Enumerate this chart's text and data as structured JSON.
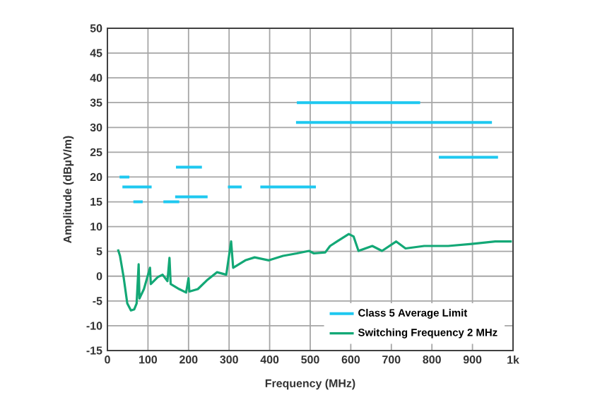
{
  "chart_data": {
    "type": "line",
    "xlabel": "Frequency (MHz)",
    "ylabel": "Amplitude (dBµV/m)",
    "xlim": [
      0,
      1000
    ],
    "ylim": [
      -15,
      50
    ],
    "xticks": [
      0,
      100,
      200,
      300,
      400,
      500,
      600,
      700,
      800,
      900,
      {
        "value": 1000,
        "label": "1k"
      }
    ],
    "yticks": [
      -15,
      -10,
      -5,
      0,
      5,
      10,
      15,
      20,
      25,
      30,
      35,
      40,
      45,
      50
    ],
    "grid": true,
    "legend": "bottom right",
    "series": [
      {
        "name": "Class 5 Average Limit",
        "color": "#1ec8f0",
        "x": [
          30,
          54,
          null,
          37,
          109,
          null,
          64,
          87,
          null,
          138,
          177,
          null,
          169,
          233,
          null,
          167,
          247,
          null,
          297,
          331,
          null,
          377,
          514,
          null,
          467,
          771,
          null,
          465,
          948,
          null,
          817,
          963
        ],
        "values": [
          20,
          20,
          null,
          18,
          18,
          null,
          15,
          15,
          null,
          15,
          15,
          null,
          22,
          22,
          null,
          16,
          16,
          null,
          18,
          18,
          null,
          18,
          18,
          null,
          35,
          35,
          null,
          31,
          31,
          null,
          24,
          24
        ]
      },
      {
        "name": "Switching Frequency 2 MHz",
        "color": "#13a876",
        "x": [
          26,
          31,
          40,
          49,
          58,
          66,
          72,
          77,
          79,
          90,
          105,
          107,
          124,
          136,
          148,
          153,
          156,
          177,
          194,
          200,
          202,
          223,
          247,
          270,
          293,
          305,
          310,
          340,
          363,
          398,
          433,
          467,
          497,
          509,
          537,
          549,
          566,
          595,
          607,
          619,
          653,
          677,
          712,
          735,
          781,
          840,
          898,
          956,
          997
        ],
        "values": [
          5.4,
          4.1,
          -0.2,
          -5.5,
          -6.9,
          -6.7,
          -5.5,
          2.4,
          -4.5,
          -2.6,
          1.7,
          -1.6,
          -0.2,
          0.3,
          -1,
          3.7,
          -1.6,
          -2.6,
          -3.3,
          -0.4,
          -3.1,
          -2.6,
          -0.7,
          0.8,
          0.3,
          7.0,
          1.7,
          3.2,
          3.8,
          3.2,
          4.1,
          4.6,
          5.1,
          4.6,
          4.8,
          6.1,
          7.0,
          8.5,
          8.0,
          5.1,
          6.1,
          5.1,
          7.0,
          5.6,
          6.1,
          6.1,
          6.5,
          7.0,
          7.0
        ]
      }
    ]
  }
}
